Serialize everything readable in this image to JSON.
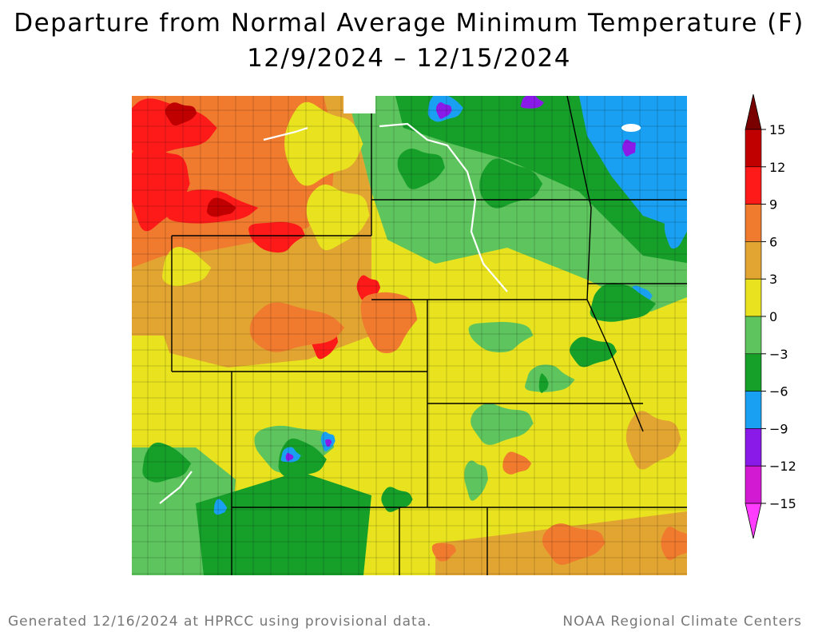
{
  "title": {
    "line1": "Departure from Normal Average Minimum Temperature (F)",
    "line2": "12/9/2024 – 12/15/2024"
  },
  "legend": {
    "labels": [
      "15",
      "12",
      "9",
      "6",
      "3",
      "0",
      "−3",
      "−6",
      "−9",
      "−12",
      "−15"
    ],
    "bands": [
      {
        "from": 12,
        "to": 15,
        "color": "#c00000"
      },
      {
        "from": 9,
        "to": 12,
        "color": "#ff1a1a"
      },
      {
        "from": 6,
        "to": 9,
        "color": "#f07b2e"
      },
      {
        "from": 3,
        "to": 6,
        "color": "#e3a531"
      },
      {
        "from": 0,
        "to": 3,
        "color": "#e8e31e"
      },
      {
        "from": -3,
        "to": 0,
        "color": "#5ec45e"
      },
      {
        "from": -6,
        "to": -3,
        "color": "#16a02a"
      },
      {
        "from": -9,
        "to": -6,
        "color": "#1aa0f2"
      },
      {
        "from": -12,
        "to": -9,
        "color": "#8a1ae8"
      },
      {
        "from": -15,
        "to": -12,
        "color": "#d21ad2"
      }
    ],
    "top_arrow_color": "#7a0000",
    "bottom_arrow_color": "#ff3cff"
  },
  "colors": {
    "red": "#ff1a1a",
    "dark_red": "#c00000",
    "orange": "#f07b2e",
    "light_orange": "#e3a531",
    "yellow": "#e8e31e",
    "light_green": "#5ec45e",
    "green": "#16a02a",
    "blue": "#1aa0f2",
    "purple": "#8a1ae8",
    "magenta": "#d21ad2"
  },
  "footer": {
    "left": "Generated 12/16/2024 at HPRCC using provisional data.",
    "right": "NOAA Regional Climate Centers"
  }
}
